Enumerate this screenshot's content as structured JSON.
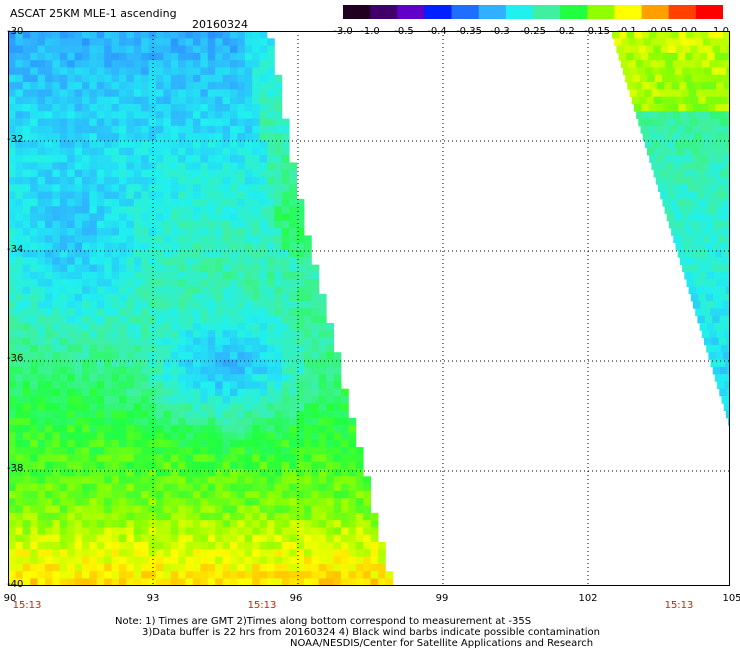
{
  "header": {
    "title": "ASCAT 25KM MLE-1 ascending",
    "date": "20160324"
  },
  "colorbar": {
    "labels": [
      "-3.0",
      "-1.0",
      "-0.5",
      "-0.4",
      "-0.35",
      "-0.3",
      "-0.25",
      "-0.2",
      "-0.15",
      "-0.1",
      "-0.05",
      "0.0",
      "1.0"
    ],
    "colors": [
      "#200020",
      "#40006a",
      "#6000c8",
      "#0020ff",
      "#1f6fff",
      "#30b0ff",
      "#20f0f0",
      "#40f0a0",
      "#20ff40",
      "#90ff00",
      "#ffff00",
      "#ffa000",
      "#ff4000",
      "#ff0000"
    ]
  },
  "map": {
    "lon_labels": [
      "90",
      "93",
      "96",
      "99",
      "102",
      "105"
    ],
    "lat_labels": [
      "-30",
      "-32",
      "-34",
      "-36",
      "-38",
      "-40"
    ],
    "time_labels": [
      "15:13",
      "15:13",
      "15:13"
    ]
  },
  "notes": {
    "line1": "Note: 1) Times are GMT 2)Times along bottom correspond to measurement at -35S",
    "line2": "3)Data buffer is 22 hrs from 20160324 4) Black wind barbs indicate possible contamination",
    "line3": "NOAA/NESDIS/Center for Satellite Applications and Research"
  }
}
